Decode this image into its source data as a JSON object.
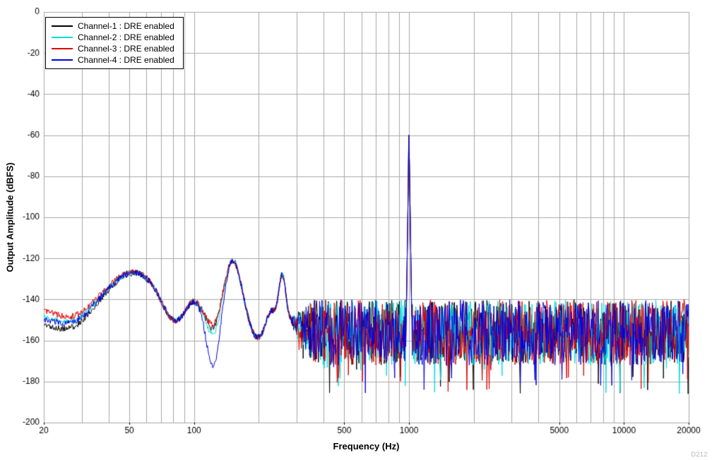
{
  "watermark": "D212",
  "chart_data": {
    "type": "line",
    "title": "",
    "xlabel": "Frequency (Hz)",
    "ylabel": "Output Amplitude (dBFS)",
    "x_scale": "log",
    "xlim": [
      20,
      20000
    ],
    "ylim": [
      -200,
      0
    ],
    "grid": true,
    "grid_color": "#a7a7a7",
    "legend_position": "top-left",
    "x_ticks": [
      {
        "value": 20,
        "label": "20"
      },
      {
        "value": 50,
        "label": "50"
      },
      {
        "value": 100,
        "label": "100"
      },
      {
        "value": 500,
        "label": "500"
      },
      {
        "value": 1000,
        "label": "1000"
      },
      {
        "value": 5000,
        "label": "5000"
      },
      {
        "value": 10000,
        "label": "10000"
      },
      {
        "value": 20000,
        "label": "20000"
      }
    ],
    "y_ticks": [
      0,
      -20,
      -40,
      -60,
      -80,
      -100,
      -120,
      -140,
      -160,
      -180,
      -200
    ],
    "signal": {
      "frequency_hz": 1000,
      "peak_dbfs": -60
    },
    "noise_floor_dbfs": -155,
    "features": {
      "envelope": {
        "base_dbfs": -150,
        "gaussians": [
          {
            "center_log10_hz": 1.72,
            "amp_db": 23,
            "sigma": 0.13
          },
          {
            "center_log10_hz": 1.43,
            "amp_db": -4,
            "sigma": 0.07
          },
          {
            "center_log10_hz": 1.9,
            "amp_db": -9,
            "sigma": 0.05
          },
          {
            "center_log10_hz": 2.0,
            "amp_db": 8,
            "sigma": 0.04
          },
          {
            "center_log10_hz": 2.18,
            "amp_db": 29,
            "sigma": 0.04
          },
          {
            "center_log10_hz": 2.295,
            "amp_db": -9,
            "sigma": 0.035
          },
          {
            "center_log10_hz": 2.355,
            "amp_db": 6,
            "sigma": 0.02
          },
          {
            "center_log10_hz": 2.41,
            "amp_db": 22,
            "sigma": 0.016
          }
        ],
        "notch_center_log10_hz": 2.09,
        "notch_sigma": 0.03,
        "low_offset_center_log10_hz": 1.3,
        "low_offset_sigma": 0.18,
        "jitter_db": 3
      },
      "noise": {
        "top_dbfs": -140,
        "band_db": 32,
        "deep_spike_prob": 0.06,
        "deep_spike_db": 14,
        "start_log10_hz": 2.44,
        "full_log10_hz": 2.56
      },
      "tone": {
        "peak_dbfs": -60,
        "skirt_db_per_decade": 7000
      }
    },
    "series": [
      {
        "label": "Channel-1 : DRE enabled",
        "color": "#000000",
        "seed": 11,
        "low_offset_db": -2,
        "notch_depth_db": 7
      },
      {
        "label": "Channel-2 : DRE enabled",
        "color": "#00dcdc",
        "seed": 22,
        "low_offset_db": 2,
        "notch_depth_db": 10
      },
      {
        "label": "Channel-3 : DRE enabled",
        "color": "#dd0000",
        "seed": 33,
        "low_offset_db": 5,
        "notch_depth_db": 5
      },
      {
        "label": "Channel-4 : DRE enabled",
        "color": "#0000dd",
        "seed": 44,
        "low_offset_db": 1,
        "notch_depth_db": 26
      }
    ]
  }
}
